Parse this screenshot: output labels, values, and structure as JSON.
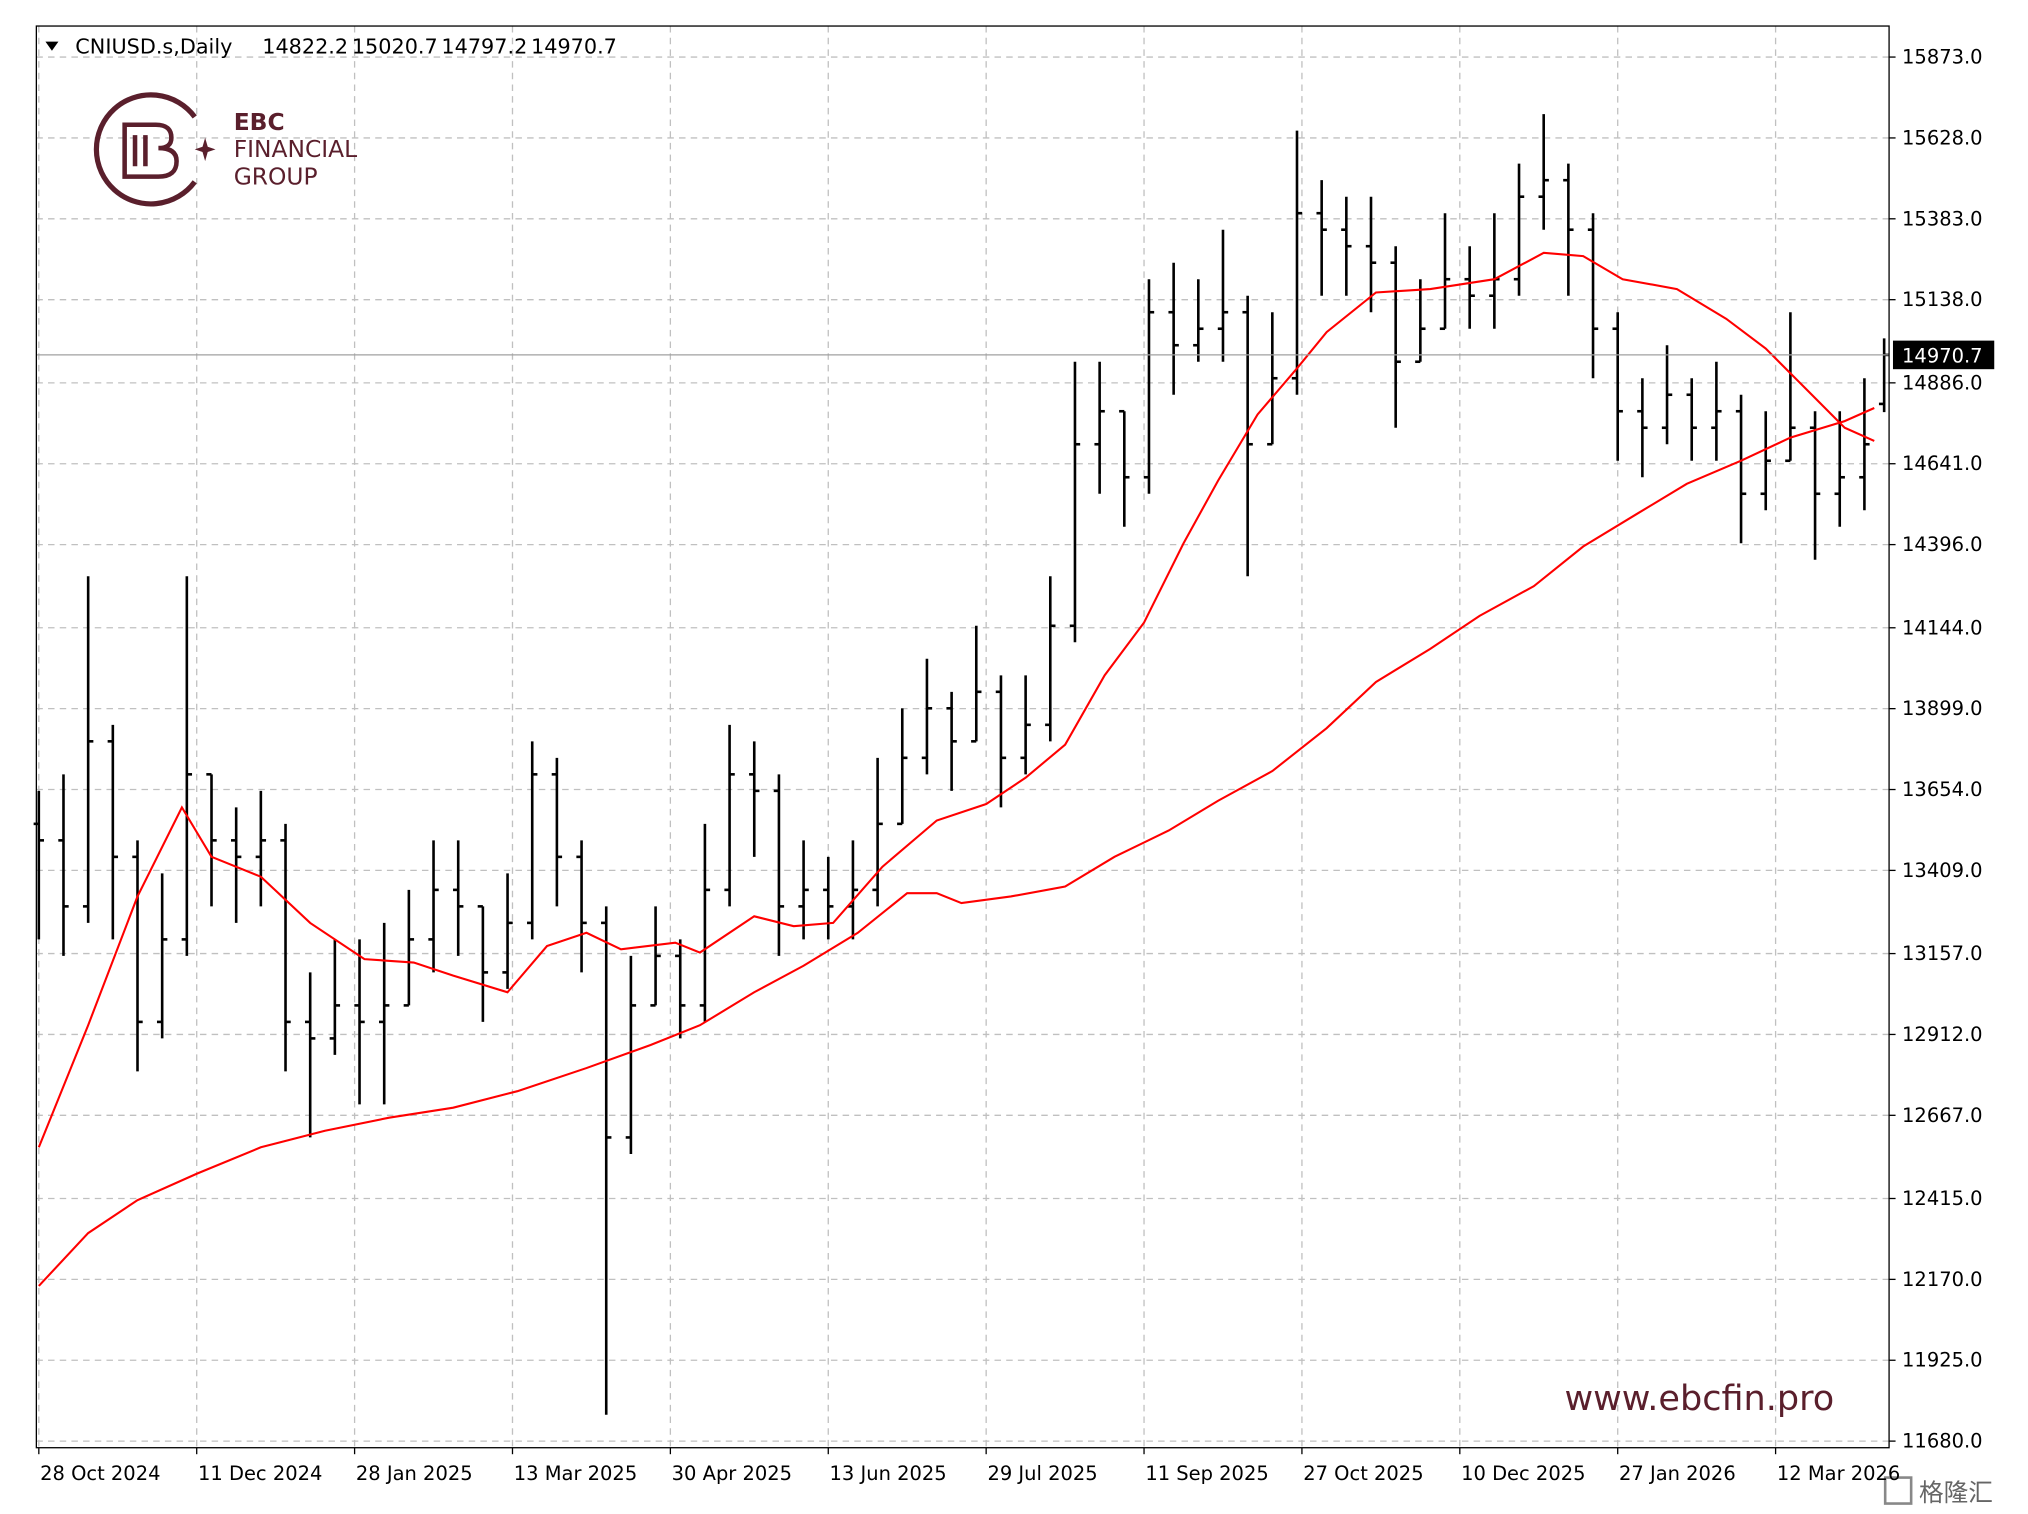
{
  "chart_data": {
    "type": "ohlc",
    "title": "CNIUSD.s,Daily",
    "color": "#000000",
    "x": [
      0,
      5,
      10,
      15,
      20,
      25,
      30,
      35,
      40,
      45,
      50,
      55,
      60,
      65,
      70,
      75,
      80,
      85,
      90,
      95,
      100,
      105,
      110,
      115,
      120,
      125,
      130,
      135,
      140,
      145,
      150,
      155,
      160,
      165,
      170,
      175,
      180,
      185,
      190,
      195,
      200,
      205,
      210,
      215,
      220,
      225,
      230,
      235,
      240,
      245,
      250,
      255,
      260,
      265,
      270,
      275,
      280,
      285,
      290,
      295,
      300,
      305,
      310,
      315,
      320,
      325,
      330,
      335,
      340,
      345,
      350,
      355,
      360,
      365,
      370,
      374
    ],
    "open": [
      13550,
      13500,
      13300,
      13800,
      13450,
      12950,
      13200,
      13700,
      13500,
      13450,
      13500,
      12950,
      12900,
      13000,
      12950,
      13000,
      13200,
      13350,
      13300,
      13100,
      13250,
      13700,
      13450,
      13250,
      12600,
      13000,
      13150,
      13000,
      13350,
      13700,
      13650,
      13300,
      13350,
      13300,
      13350,
      13550,
      13750,
      13900,
      13800,
      13950,
      13750,
      13850,
      14150,
      14700,
      14800,
      14600,
      15100,
      15000,
      15050,
      15100,
      14700,
      14900,
      15400,
      15350,
      15300,
      15250,
      14950,
      15050,
      15200,
      15150,
      15200,
      15450,
      15500,
      15350,
      15050,
      14800,
      14750,
      14850,
      14750,
      14800,
      14550,
      14650,
      14750,
      14550,
      14600,
      14822.2
    ],
    "high": [
      13650,
      13700,
      14300,
      13850,
      13500,
      13400,
      14300,
      13700,
      13600,
      13650,
      13550,
      13100,
      13200,
      13200,
      13250,
      13350,
      13500,
      13500,
      13300,
      13400,
      13800,
      13750,
      13500,
      13300,
      13150,
      13300,
      13200,
      13550,
      13850,
      13800,
      13700,
      13500,
      13450,
      13500,
      13750,
      13900,
      14050,
      13950,
      14150,
      14000,
      14000,
      14300,
      14950,
      14950,
      14800,
      15200,
      15250,
      15200,
      15350,
      15150,
      15100,
      15650,
      15500,
      15450,
      15450,
      15300,
      15200,
      15400,
      15300,
      15400,
      15550,
      15700,
      15550,
      15400,
      15100,
      14900,
      15000,
      14900,
      14950,
      14850,
      14800,
      15100,
      14800,
      14800,
      14900,
      15020.7
    ],
    "low": [
      13200,
      13150,
      13250,
      13200,
      12800,
      12900,
      13150,
      13300,
      13250,
      13300,
      12800,
      12600,
      12850,
      12700,
      12700,
      13000,
      13100,
      13150,
      12950,
      13050,
      13200,
      13300,
      13100,
      11760,
      12550,
      13000,
      12900,
      12950,
      13300,
      13450,
      13150,
      13200,
      13200,
      13200,
      13300,
      13550,
      13700,
      13650,
      13800,
      13600,
      13700,
      13800,
      14100,
      14550,
      14450,
      14550,
      14850,
      14950,
      14950,
      14300,
      14700,
      14850,
      15150,
      15150,
      15100,
      14750,
      14950,
      15050,
      15050,
      15050,
      15150,
      15350,
      15150,
      14900,
      14650,
      14600,
      14700,
      14650,
      14650,
      14400,
      14500,
      14650,
      14350,
      14450,
      14500,
      14797.2
    ],
    "close": [
      13500,
      13300,
      13800,
      13450,
      12950,
      13200,
      13700,
      13500,
      13450,
      13500,
      12950,
      12900,
      13000,
      12950,
      13000,
      13200,
      13350,
      13300,
      13100,
      13250,
      13700,
      13450,
      13250,
      12600,
      13000,
      13150,
      13000,
      13350,
      13700,
      13650,
      13300,
      13350,
      13300,
      13350,
      13550,
      13750,
      13900,
      13800,
      13950,
      13750,
      13850,
      14150,
      14700,
      14800,
      14600,
      15100,
      15000,
      15050,
      15100,
      14700,
      14900,
      15400,
      15350,
      15300,
      15250,
      14950,
      15050,
      15200,
      15150,
      15200,
      15450,
      15500,
      15350,
      15050,
      14800,
      14750,
      14850,
      14750,
      14800,
      14550,
      14650,
      14750,
      14550,
      14600,
      14700,
      14970.7
    ],
    "moving_averages": [
      {
        "color": "#ff0000",
        "x": [
          0,
          10,
          20,
          29,
          35,
          45,
          55,
          66,
          76,
          84,
          95,
          103,
          111,
          118,
          129,
          134,
          145,
          153,
          161,
          171,
          182,
          192,
          200,
          208,
          216,
          224,
          232,
          239,
          247,
          255,
          261,
          271,
          282,
          295,
          305,
          313,
          321,
          332,
          342,
          350,
          358,
          366,
          372
        ],
        "values": [
          12570,
          12940,
          13330,
          13600,
          13450,
          13390,
          13250,
          13140,
          13130,
          13090,
          13040,
          13180,
          13220,
          13170,
          13190,
          13160,
          13270,
          13240,
          13250,
          13420,
          13560,
          13610,
          13690,
          13790,
          14000,
          14160,
          14400,
          14590,
          14790,
          14930,
          15040,
          15160,
          15170,
          15200,
          15280,
          15270,
          15200,
          15170,
          15080,
          14990,
          14870,
          14750,
          14710
        ]
      },
      {
        "color": "#ff0000",
        "x": [
          0,
          10,
          20,
          32,
          45,
          58,
          71,
          84,
          97,
          111,
          124,
          134,
          145,
          155,
          166,
          176,
          182,
          187,
          197,
          208,
          218,
          229,
          239,
          250,
          261,
          271,
          282,
          292,
          303,
          313,
          324,
          334,
          345,
          355,
          366,
          372
        ],
        "values": [
          12150,
          12310,
          12410,
          12490,
          12570,
          12620,
          12660,
          12690,
          12740,
          12810,
          12880,
          12940,
          13040,
          13120,
          13220,
          13340,
          13340,
          13310,
          13330,
          13360,
          13450,
          13530,
          13620,
          13710,
          13840,
          13980,
          14080,
          14180,
          14270,
          14390,
          14490,
          14580,
          14650,
          14720,
          14770,
          14810
        ]
      }
    ],
    "last_price": {
      "value": 14970.7,
      "label": "14970.7"
    },
    "xlim": [
      -0.5,
      375
    ],
    "xticks": [
      {
        "value": 0,
        "label": "28 Oct 2024"
      },
      {
        "value": 32,
        "label": "11 Dec 2024"
      },
      {
        "value": 64,
        "label": "28 Jan 2025"
      },
      {
        "value": 96,
        "label": "13 Mar 2025"
      },
      {
        "value": 128,
        "label": "30 Apr 2025"
      },
      {
        "value": 160,
        "label": "13 Jun 2025"
      },
      {
        "value": 192,
        "label": "29 Jul 2025"
      },
      {
        "value": 224,
        "label": "11 Sep 2025"
      },
      {
        "value": 256,
        "label": "27 Oct 2025"
      },
      {
        "value": 288,
        "label": "10 Dec 2025"
      },
      {
        "value": 320,
        "label": "27 Jan 2026"
      },
      {
        "value": 352,
        "label": "12 Mar 2026"
      }
    ],
    "ylim": [
      11660,
      15967
    ],
    "yticks": [
      {
        "value": 15873,
        "label": "15873.0"
      },
      {
        "value": 15628,
        "label": "15628.0"
      },
      {
        "value": 15383,
        "label": "15383.0"
      },
      {
        "value": 15138,
        "label": "15138.0"
      },
      {
        "value": 14886,
        "label": "14886.0"
      },
      {
        "value": 14641,
        "label": "14641.0"
      },
      {
        "value": 14396,
        "label": "14396.0"
      },
      {
        "value": 14144,
        "label": "14144.0"
      },
      {
        "value": 13899,
        "label": "13899.0"
      },
      {
        "value": 13654,
        "label": "13654.0"
      },
      {
        "value": 13409,
        "label": "13409.0"
      },
      {
        "value": 13157,
        "label": "13157.0"
      },
      {
        "value": 12912,
        "label": "12912.0"
      },
      {
        "value": 12667,
        "label": "12667.0"
      },
      {
        "value": 12415,
        "label": "12415.0"
      },
      {
        "value": 12170,
        "label": "12170.0"
      },
      {
        "value": 11925,
        "label": "11925.0"
      },
      {
        "value": 11680,
        "label": "11680.0"
      }
    ],
    "grid": true
  },
  "logo": {
    "lines": [
      "EBC",
      "FINANCIAL",
      "GROUP"
    ]
  },
  "watermark": "www.ebcfin.pro",
  "source_badge": "格隆汇"
}
